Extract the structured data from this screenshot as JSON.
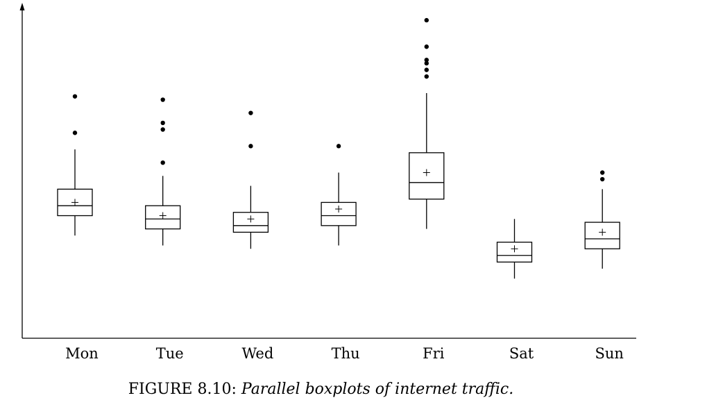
{
  "figure": {
    "caption_label": "FIGURE 8.10:",
    "caption_text": "Parallel boxplots of internet traffic."
  },
  "chart_data": {
    "type": "boxplot",
    "title": "",
    "xlabel": "",
    "ylabel": "",
    "y_axis_ticks": "none",
    "grid": false,
    "legend": "none",
    "categories": [
      "Mon",
      "Tue",
      "Wed",
      "Thu",
      "Fri",
      "Sat",
      "Sun"
    ],
    "ylim": [
      0,
      100
    ],
    "boxes": [
      {
        "label": "Mon",
        "whisker_low": 31,
        "q1": 37,
        "median": 40,
        "q3": 45,
        "whisker_high": 57,
        "mean": 41,
        "outliers": [
          73,
          62
        ]
      },
      {
        "label": "Tue",
        "whisker_low": 28,
        "q1": 33,
        "median": 36,
        "q3": 40,
        "whisker_high": 49,
        "mean": 37,
        "outliers": [
          72,
          65,
          63,
          53
        ]
      },
      {
        "label": "Wed",
        "whisker_low": 27,
        "q1": 32,
        "median": 34,
        "q3": 38,
        "whisker_high": 46,
        "mean": 36,
        "outliers": [
          68,
          58
        ]
      },
      {
        "label": "Thu",
        "whisker_low": 28,
        "q1": 34,
        "median": 37,
        "q3": 41,
        "whisker_high": 50,
        "mean": 39,
        "outliers": [
          58
        ]
      },
      {
        "label": "Fri",
        "whisker_low": 33,
        "q1": 42,
        "median": 47,
        "q3": 56,
        "whisker_high": 74,
        "mean": 50,
        "outliers": [
          96,
          88,
          84,
          83,
          81,
          79
        ]
      },
      {
        "label": "Sat",
        "whisker_low": 18,
        "q1": 23,
        "median": 25,
        "q3": 29,
        "whisker_high": 36,
        "mean": 27,
        "outliers": []
      },
      {
        "label": "Sun",
        "whisker_low": 21,
        "q1": 27,
        "median": 30,
        "q3": 35,
        "whisker_high": 45,
        "mean": 32,
        "outliers": [
          50,
          48
        ]
      }
    ]
  }
}
